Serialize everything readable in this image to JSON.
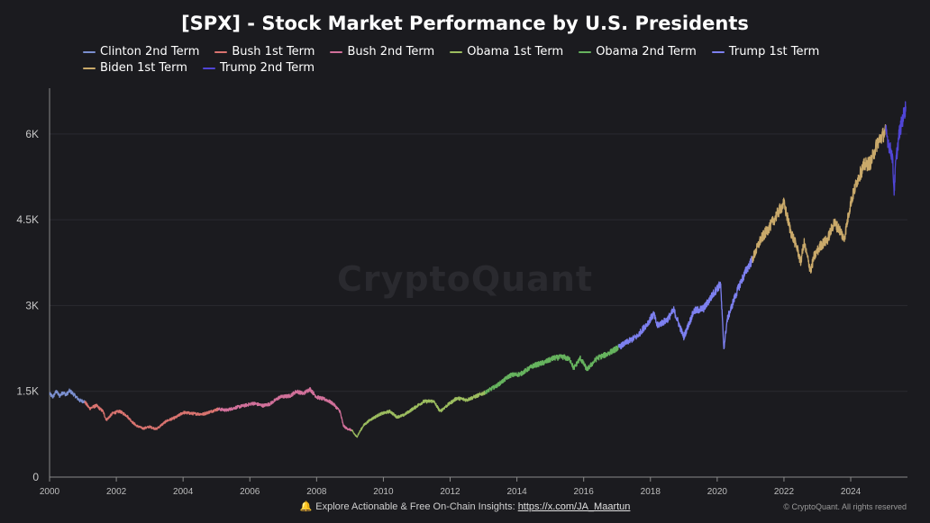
{
  "title": "[SPX] - Stock Market Performance by U.S. Presidents",
  "watermark": "CryptoQuant",
  "footer": {
    "bell_icon": "bell-icon",
    "text": "Explore Actionable & Free On-Chain Insights:",
    "link": "https://x.com/JA_Maartun"
  },
  "copyright": "© CryptoQuant. All rights reserved",
  "chart_data": {
    "type": "line",
    "title": "[SPX] - Stock Market Performance by U.S. Presidents",
    "xlabel": "",
    "ylabel": "",
    "xlim": [
      2000,
      2025.7
    ],
    "ylim": [
      0,
      6800
    ],
    "grid": true,
    "legend_position": "top",
    "y_ticks": [
      0,
      1500,
      3000,
      4500,
      6000
    ],
    "y_tick_labels": [
      "0",
      "1.5K",
      "3K",
      "4.5K",
      "6K"
    ],
    "x_ticks": [
      2000,
      2002,
      2004,
      2006,
      2008,
      2010,
      2012,
      2014,
      2016,
      2018,
      2020,
      2022,
      2024
    ],
    "x_tick_labels": [
      "2000",
      "2002",
      "2004",
      "2006",
      "2008",
      "2010",
      "2012",
      "2014",
      "2016",
      "2018",
      "2020",
      "2022",
      "2024"
    ],
    "series": [
      {
        "name": "Clinton 2nd Term",
        "color": "#7b8fd0",
        "x": [
          2000.0,
          2000.1,
          2000.2,
          2000.3,
          2000.4,
          2000.5,
          2000.6,
          2000.7,
          2000.8,
          2000.9,
          2001.05
        ],
        "y": [
          1460,
          1400,
          1500,
          1420,
          1480,
          1440,
          1510,
          1460,
          1400,
          1340,
          1320
        ]
      },
      {
        "name": "Bush 1st Term",
        "color": "#d9736f",
        "x": [
          2001.05,
          2001.2,
          2001.4,
          2001.6,
          2001.7,
          2001.9,
          2002.1,
          2002.3,
          2002.5,
          2002.6,
          2002.8,
          2003.0,
          2003.2,
          2003.5,
          2003.8,
          2004.0,
          2004.3,
          2004.6,
          2004.8,
          2005.05
        ],
        "y": [
          1320,
          1200,
          1250,
          1150,
          1000,
          1120,
          1150,
          1080,
          950,
          900,
          850,
          880,
          840,
          980,
          1050,
          1130,
          1110,
          1100,
          1140,
          1190
        ]
      },
      {
        "name": "Bush 2nd Term",
        "color": "#d1709a",
        "x": [
          2005.05,
          2005.3,
          2005.6,
          2005.9,
          2006.1,
          2006.4,
          2006.6,
          2006.9,
          2007.2,
          2007.4,
          2007.6,
          2007.8,
          2008.0,
          2008.3,
          2008.5,
          2008.7,
          2008.8,
          2008.9,
          2009.05
        ],
        "y": [
          1190,
          1170,
          1220,
          1260,
          1290,
          1250,
          1280,
          1400,
          1420,
          1500,
          1460,
          1540,
          1400,
          1350,
          1280,
          1150,
          900,
          850,
          820
        ]
      },
      {
        "name": "Obama 1st Term",
        "color": "#9cbd5f",
        "x": [
          2009.05,
          2009.2,
          2009.4,
          2009.6,
          2009.9,
          2010.2,
          2010.4,
          2010.6,
          2010.9,
          2011.2,
          2011.5,
          2011.7,
          2011.9,
          2012.2,
          2012.5,
          2012.8,
          2013.05
        ],
        "y": [
          820,
          700,
          900,
          1000,
          1100,
          1150,
          1050,
          1080,
          1200,
          1320,
          1330,
          1150,
          1250,
          1380,
          1350,
          1420,
          1480
        ]
      },
      {
        "name": "Obama 2nd Term",
        "color": "#66b35e",
        "x": [
          2013.05,
          2013.4,
          2013.8,
          2014.1,
          2014.5,
          2014.8,
          2015.1,
          2015.4,
          2015.6,
          2015.7,
          2015.9,
          2016.1,
          2016.4,
          2016.7,
          2017.05
        ],
        "y": [
          1480,
          1600,
          1780,
          1800,
          1950,
          2000,
          2080,
          2100,
          2050,
          1900,
          2080,
          1880,
          2080,
          2150,
          2270
        ]
      },
      {
        "name": "Trump 1st Term",
        "color": "#7d80f0",
        "x": [
          2017.05,
          2017.3,
          2017.6,
          2017.9,
          2018.1,
          2018.2,
          2018.5,
          2018.7,
          2018.9,
          2019.0,
          2019.3,
          2019.6,
          2019.9,
          2020.1,
          2020.2,
          2020.3,
          2020.5,
          2020.7,
          2020.9,
          2021.05
        ],
        "y": [
          2270,
          2360,
          2460,
          2680,
          2850,
          2650,
          2750,
          2920,
          2600,
          2450,
          2900,
          2950,
          3220,
          3380,
          2250,
          2750,
          3100,
          3400,
          3650,
          3800
        ]
      },
      {
        "name": "Biden 1st Term",
        "color": "#c9a96a",
        "x": [
          2021.05,
          2021.3,
          2021.6,
          2021.9,
          2022.0,
          2022.2,
          2022.4,
          2022.5,
          2022.6,
          2022.8,
          2022.9,
          2023.1,
          2023.3,
          2023.5,
          2023.7,
          2023.8,
          2024.0,
          2024.2,
          2024.4,
          2024.6,
          2024.8,
          2025.05
        ],
        "y": [
          3800,
          4150,
          4400,
          4700,
          4780,
          4300,
          4000,
          3750,
          4100,
          3600,
          3850,
          4050,
          4150,
          4450,
          4300,
          4150,
          4800,
          5200,
          5450,
          5500,
          5850,
          6050
        ]
      },
      {
        "name": "Trump 2nd Term",
        "color": "#5045d6",
        "x": [
          2025.05,
          2025.15,
          2025.25,
          2025.3,
          2025.35,
          2025.45,
          2025.55,
          2025.65
        ],
        "y": [
          6050,
          5800,
          5600,
          4980,
          5500,
          6000,
          6250,
          6480
        ]
      }
    ]
  }
}
